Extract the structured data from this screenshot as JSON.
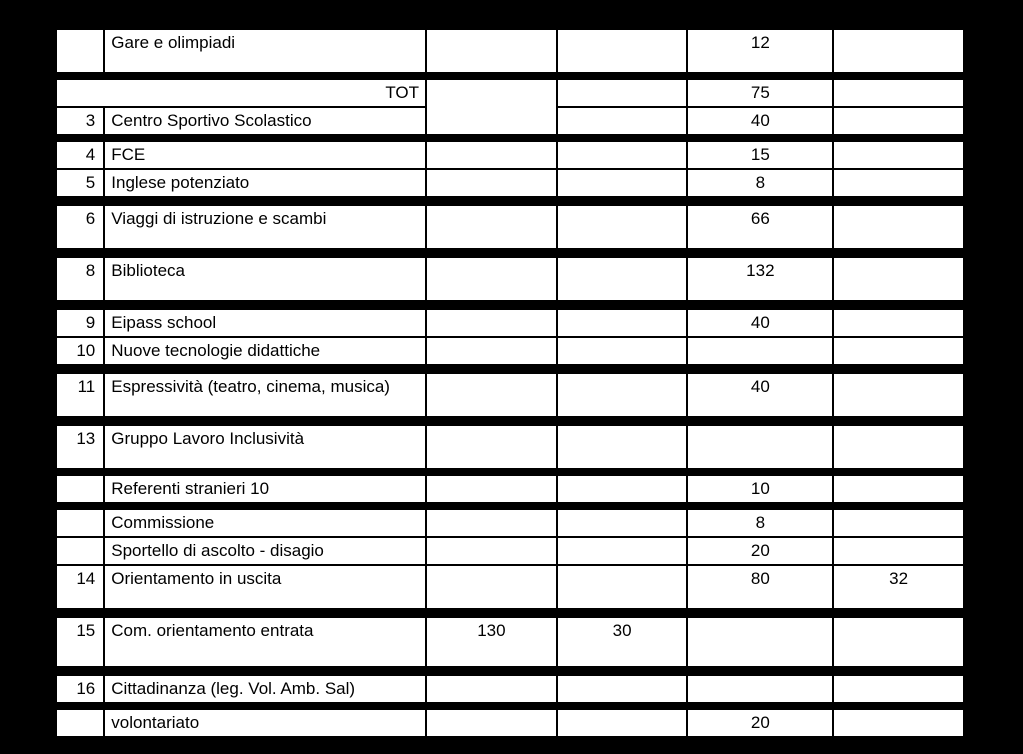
{
  "rows": {
    "r1": {
      "desc": "Gare e olimpiadi",
      "c5": "12"
    },
    "tot": {
      "label": "TOT",
      "c5": "75"
    },
    "r3": {
      "num": "3",
      "desc": "Centro Sportivo Scolastico",
      "c5": "40"
    },
    "r4": {
      "num": "4",
      "desc": "FCE",
      "c5": "15"
    },
    "r5": {
      "num": "5",
      "desc": "Inglese potenziato",
      "c5": "8"
    },
    "r6": {
      "num": "6",
      "desc": "Viaggi di istruzione e scambi",
      "c5": "66"
    },
    "r8": {
      "num": "8",
      "desc": "Biblioteca",
      "c5": "132"
    },
    "r9": {
      "num": "9",
      "desc": "Eipass school",
      "c5": "40"
    },
    "r10": {
      "num": "10",
      "desc": "Nuove tecnologie didattiche"
    },
    "r11": {
      "num": "11",
      "desc": "Espressività (teatro, cinema, musica)",
      "c5": "40"
    },
    "r13": {
      "num": "13",
      "desc": "Gruppo Lavoro Inclusività"
    },
    "ref": {
      "desc": "Referenti stranieri 10",
      "c5": "10"
    },
    "com": {
      "desc": "Commissione",
      "c5": "8"
    },
    "spo": {
      "desc": "Sportello di ascolto - disagio",
      "c5": "20"
    },
    "r14": {
      "num": "14",
      "desc": "Orientamento in uscita",
      "c5": "80",
      "c6": "32"
    },
    "r15": {
      "num": "15",
      "desc": "Com. orientamento entrata",
      "c3": "130",
      "c4": "30"
    },
    "r16": {
      "num": "16",
      "desc": "Cittadinanza (leg. Vol. Amb. Sal)"
    },
    "vol": {
      "desc": "volontariato",
      "c5": "20"
    }
  }
}
